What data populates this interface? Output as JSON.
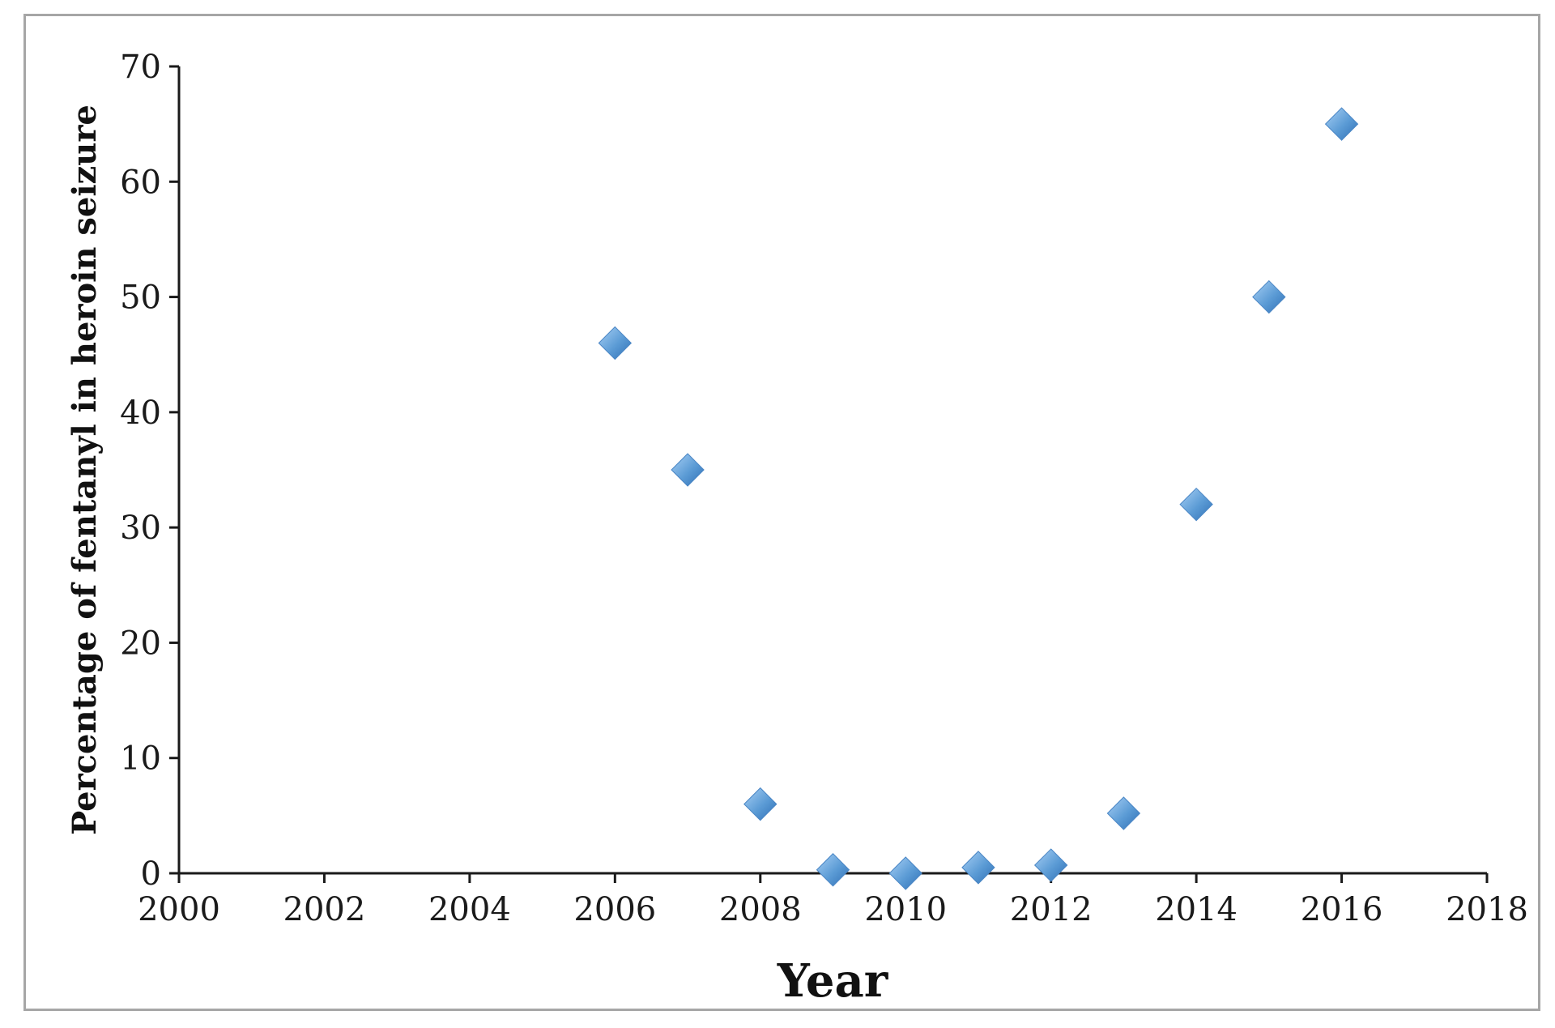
{
  "chart_data": {
    "type": "scatter",
    "title": "",
    "xlabel": "Year",
    "ylabel": "Percentage of fentanyl in heroin seizure",
    "xlim": [
      2000,
      2018
    ],
    "ylim": [
      0,
      70
    ],
    "x_ticks": [
      "2000",
      "2002",
      "2004",
      "2006",
      "2008",
      "2010",
      "2012",
      "2014",
      "2016",
      "2018"
    ],
    "y_ticks": [
      "0",
      "10",
      "20",
      "30",
      "40",
      "50",
      "60",
      "70"
    ],
    "grid": false,
    "legend": "none",
    "marker": "diamond",
    "marker_color": "#5b9bd5",
    "series": [
      {
        "x": [
          2006,
          2007,
          2008,
          2009,
          2010,
          2011,
          2012,
          2013,
          2014,
          2015,
          2016
        ],
        "y": [
          46,
          35,
          6,
          0.3,
          0,
          0.5,
          0.7,
          5.2,
          32,
          50,
          65
        ]
      }
    ]
  }
}
